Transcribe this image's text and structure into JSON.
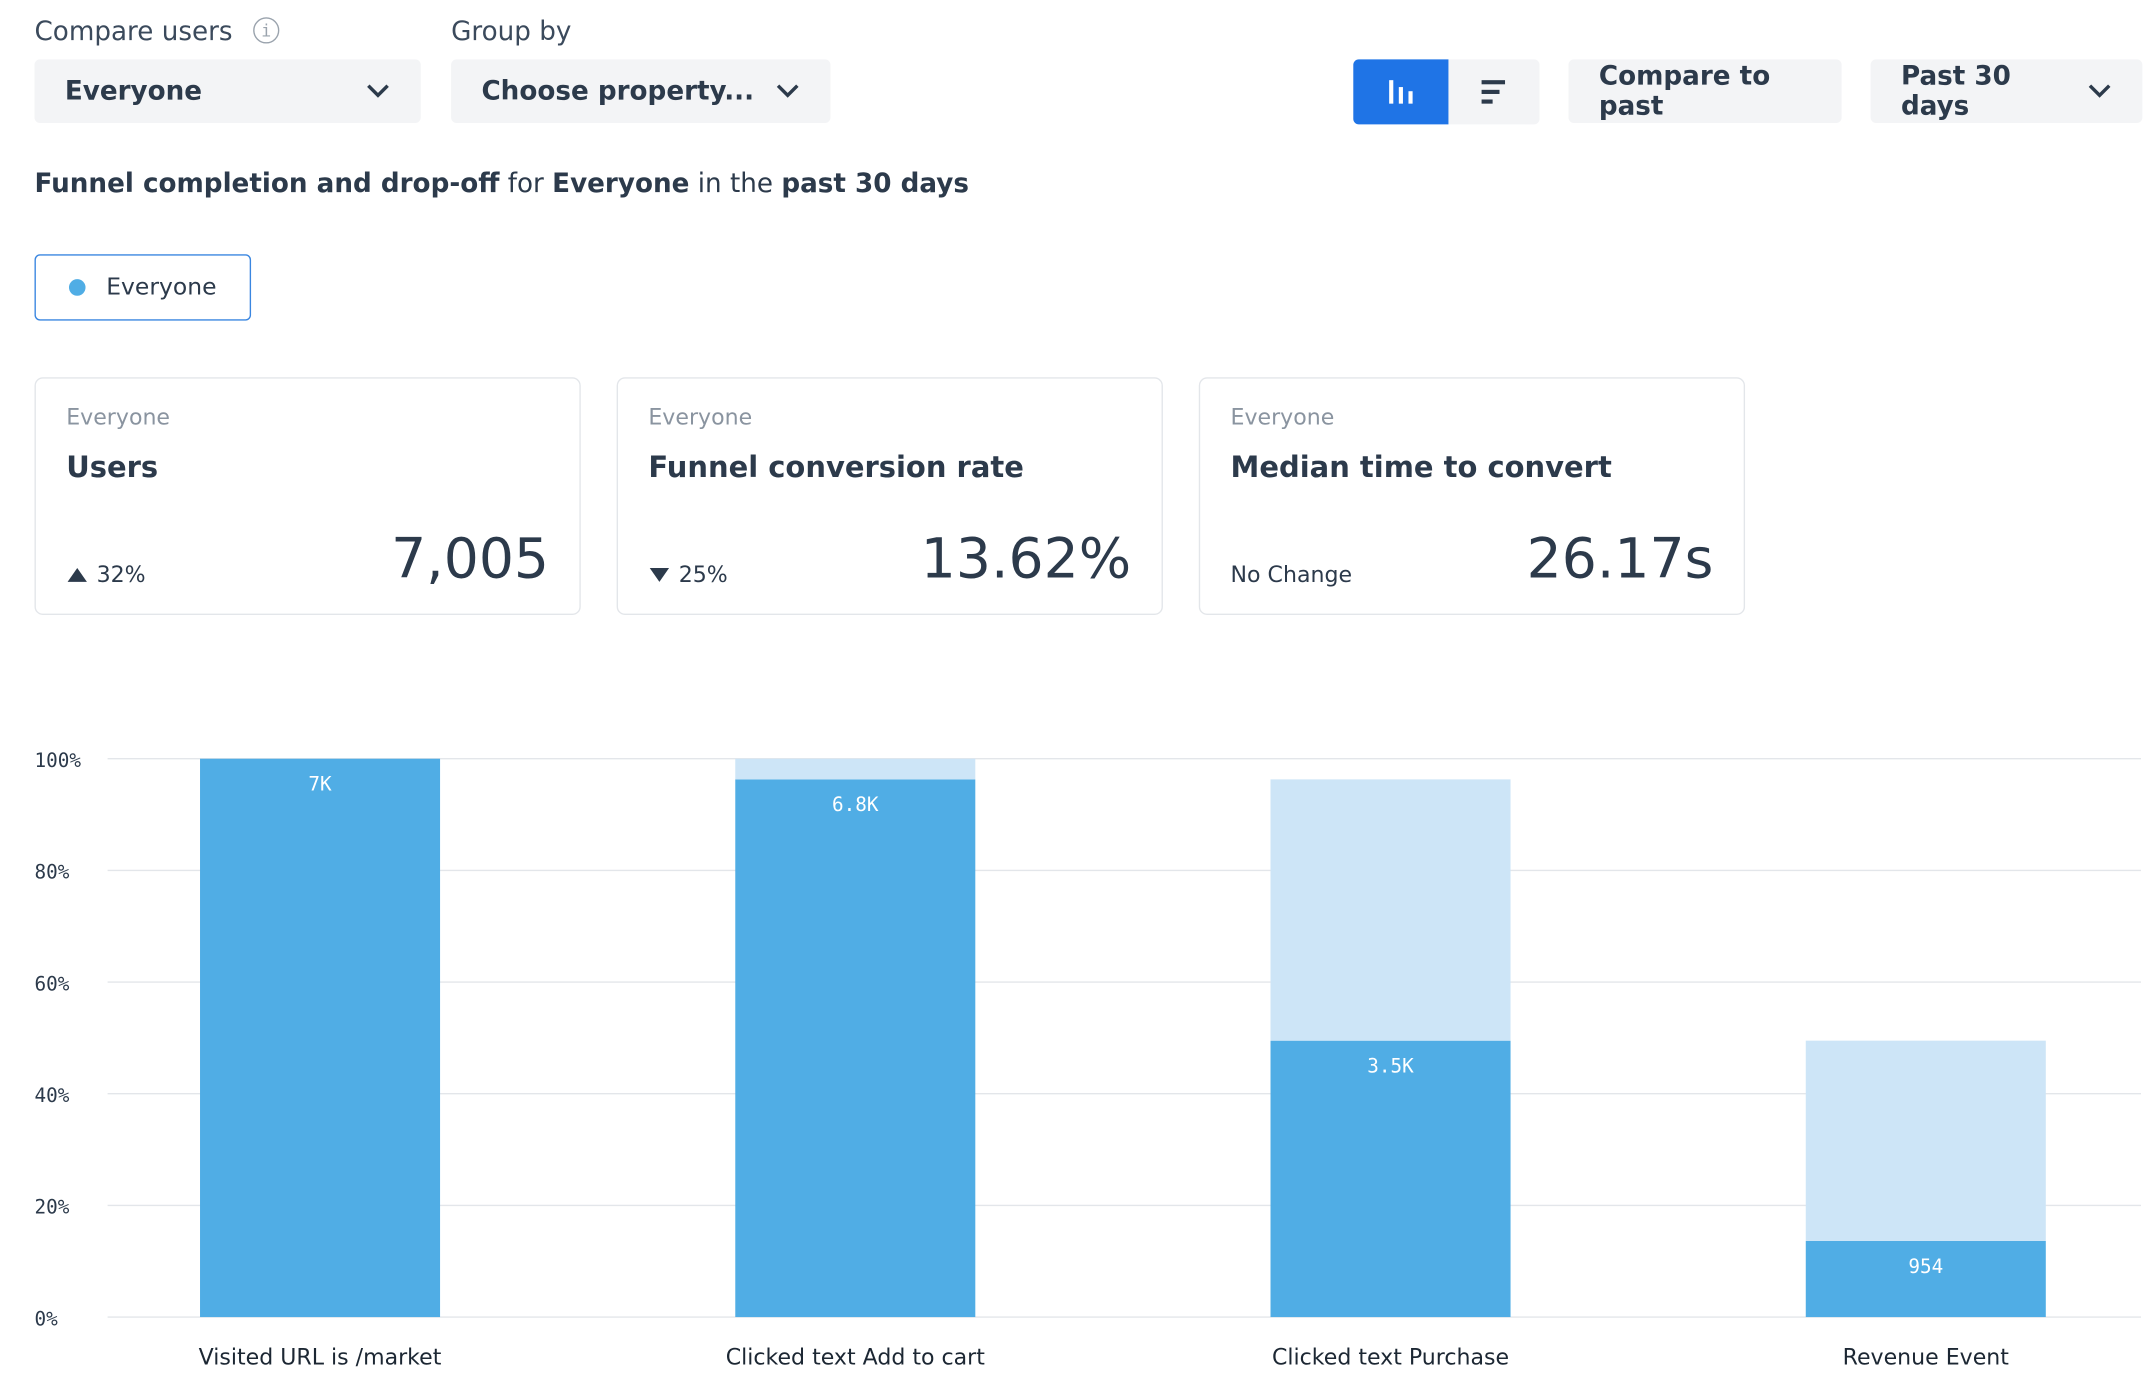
{
  "controls": {
    "compare_label": "Compare users",
    "compare_value": "Everyone",
    "group_label": "Group by",
    "group_value": "Choose property...",
    "compare_past": "Compare to past",
    "range": "Past 30 days"
  },
  "summary": {
    "part1": "Funnel completion and drop-off",
    "part2": "for",
    "part3": "Everyone",
    "part4": "in the",
    "part5": "past 30 days"
  },
  "legend": {
    "label": "Everyone"
  },
  "cards": [
    {
      "segment": "Everyone",
      "title": "Users",
      "change": "32%",
      "value": "7,005"
    },
    {
      "segment": "Everyone",
      "title": "Funnel conversion rate",
      "change": "25%",
      "value": "13.62%"
    },
    {
      "segment": "Everyone",
      "title": "Median time to convert",
      "change": "No Change",
      "value": "26.17s"
    }
  ],
  "chart_data": {
    "type": "stacked_bar",
    "categories": [
      "Visited URL is /market",
      "Clicked text Add to cart",
      "Clicked text Purchase",
      "Revenue Event"
    ],
    "series": [
      {
        "color": "#50ade5",
        "values": [
          100,
          96.3,
          49.5,
          13.62
        ],
        "value_labels": [
          "7K",
          "6.8K",
          "3.5K",
          "954"
        ]
      },
      {
        "color": "#cde5f7",
        "values": [
          0,
          3.7,
          46.8,
          35.88
        ]
      }
    ],
    "ylim": [
      0,
      100
    ],
    "yticks": [
      {
        "value": 0,
        "label": "0%"
      },
      {
        "value": 20,
        "label": "20%"
      },
      {
        "value": 40,
        "label": "40%"
      },
      {
        "value": 60,
        "label": "60%"
      },
      {
        "value": 80,
        "label": "80%"
      },
      {
        "value": 100,
        "label": "100%"
      }
    ],
    "grid": true
  }
}
